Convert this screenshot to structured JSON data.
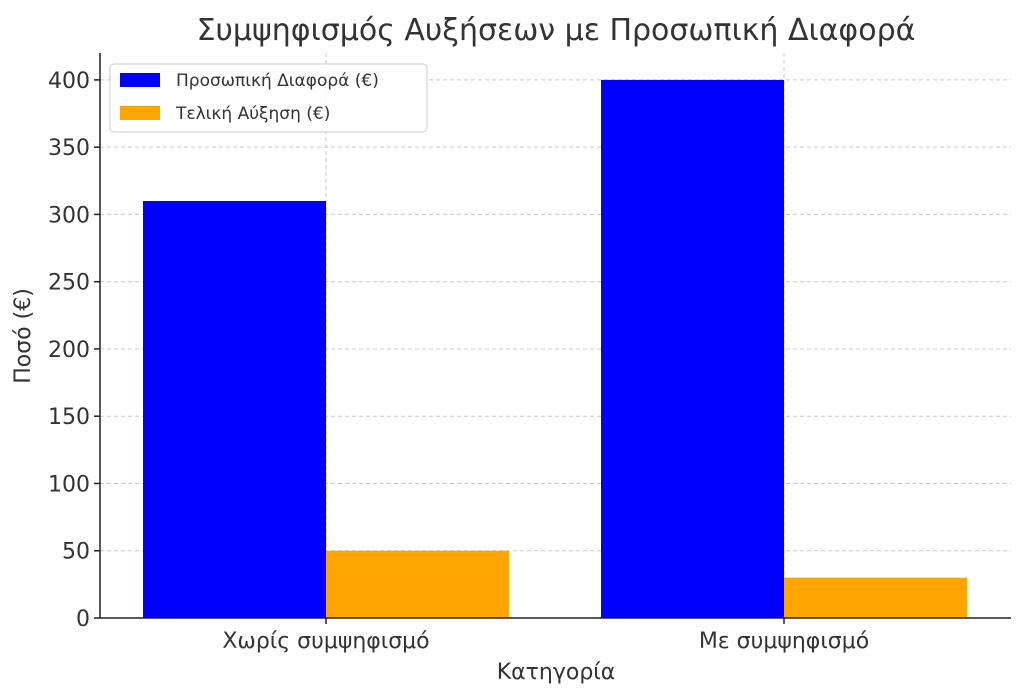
{
  "chart_data": {
    "type": "bar",
    "title": "Συμψηφισμός Αυξήσεων με Προσωπική Διαφορά",
    "xlabel": "Κατηγορία",
    "ylabel": "Ποσό (€)",
    "categories": [
      "Χωρίς συμψηφισμό",
      "Με συμψηφισμό"
    ],
    "series": [
      {
        "name": "Προσωπική Διαφορά (€)",
        "values": [
          310,
          400
        ],
        "color": "#0000ff"
      },
      {
        "name": "Τελική Αύξηση (€)",
        "values": [
          50,
          30
        ],
        "color": "#ffa500"
      }
    ],
    "ylim": [
      0,
      420
    ],
    "yticks": [
      0,
      50,
      100,
      150,
      200,
      250,
      300,
      350,
      400
    ],
    "grid": true,
    "legend_position": "top-left"
  }
}
